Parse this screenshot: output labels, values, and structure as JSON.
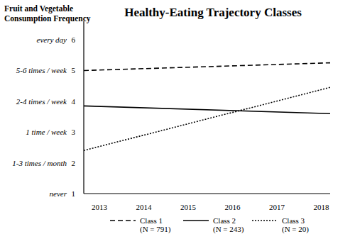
{
  "chart_data": {
    "type": "line",
    "title": "Healthy-Eating Trajectory Classes",
    "y_label": "Fruit and Vegetable\nConsumption Frequency",
    "x": [
      2012.65,
      2018.2
    ],
    "xlim": [
      2012.65,
      2018.2
    ],
    "xticks": [
      2013,
      2014,
      2015,
      2016,
      2017,
      2018
    ],
    "ylim": [
      1,
      6.6
    ],
    "yticks": [
      {
        "value": 1,
        "label": "never"
      },
      {
        "value": 2,
        "label": "1-3 times / month"
      },
      {
        "value": 3,
        "label": "1 time / week"
      },
      {
        "value": 4,
        "label": "2-4 times / week"
      },
      {
        "value": 5,
        "label": "5-6 times / week"
      },
      {
        "value": 6,
        "label": "every day"
      }
    ],
    "grid": false,
    "legend": "bottom",
    "series": [
      {
        "name": "Class 1\n(N = 791)",
        "color": "#000000",
        "line_style": "dashed",
        "values": [
          5.0,
          5.25
        ]
      },
      {
        "name": "Class 2\n(N = 243)",
        "color": "#000000",
        "line_style": "solid",
        "values": [
          3.85,
          3.6
        ]
      },
      {
        "name": "Class 3\n(N = 20)",
        "color": "#000000",
        "line_style": "dotted",
        "values": [
          2.4,
          4.45
        ]
      }
    ]
  }
}
